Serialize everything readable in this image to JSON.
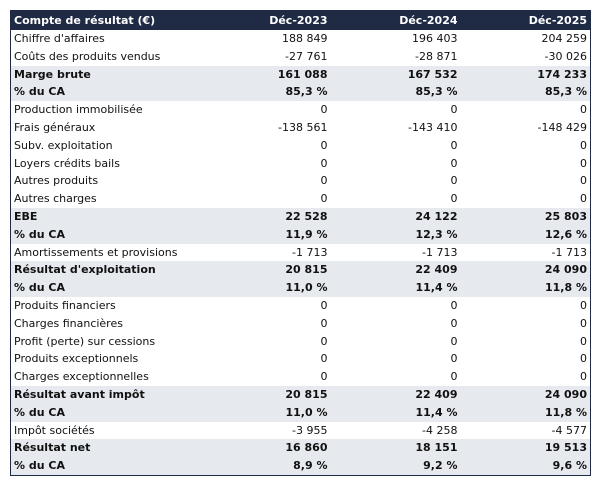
{
  "table": {
    "header": [
      "Compte de résultat (€)",
      "Déc-2023",
      "Déc-2024",
      "Déc-2025"
    ],
    "rows": [
      {
        "cells": [
          "Chiffre d'affaires",
          "188 849",
          "196 403",
          "204 259"
        ],
        "style": "normal"
      },
      {
        "cells": [
          "Coûts des produits vendus",
          "-27 761",
          "-28 871",
          "-30 026"
        ],
        "style": "normal"
      },
      {
        "cells": [
          "Marge brute",
          "161 088",
          "167 532",
          "174 233"
        ],
        "style": "total"
      },
      {
        "cells": [
          "% du CA",
          "85,3 %",
          "85,3 %",
          "85,3 %"
        ],
        "style": "total"
      },
      {
        "cells": [
          "Production immobilisée",
          "0",
          "0",
          "0"
        ],
        "style": "normal"
      },
      {
        "cells": [
          "Frais généraux",
          "-138 561",
          "-143 410",
          "-148 429"
        ],
        "style": "normal"
      },
      {
        "cells": [
          "Subv. exploitation",
          "0",
          "0",
          "0"
        ],
        "style": "normal"
      },
      {
        "cells": [
          "Loyers crédits bails",
          "0",
          "0",
          "0"
        ],
        "style": "normal"
      },
      {
        "cells": [
          "Autres produits",
          "0",
          "0",
          "0"
        ],
        "style": "normal"
      },
      {
        "cells": [
          "Autres charges",
          "0",
          "0",
          "0"
        ],
        "style": "normal"
      },
      {
        "cells": [
          "EBE",
          "22 528",
          "24 122",
          "25 803"
        ],
        "style": "total"
      },
      {
        "cells": [
          "% du CA",
          "11,9 %",
          "12,3 %",
          "12,6 %"
        ],
        "style": "total"
      },
      {
        "cells": [
          "Amortissements et provisions",
          "-1 713",
          "-1 713",
          "-1 713"
        ],
        "style": "normal"
      },
      {
        "cells": [
          "Résultat d'exploitation",
          "20 815",
          "22 409",
          "24 090"
        ],
        "style": "total"
      },
      {
        "cells": [
          "% du CA",
          "11,0 %",
          "11,4 %",
          "11,8 %"
        ],
        "style": "total"
      },
      {
        "cells": [
          "Produits financiers",
          "0",
          "0",
          "0"
        ],
        "style": "normal"
      },
      {
        "cells": [
          "Charges financières",
          "0",
          "0",
          "0"
        ],
        "style": "normal"
      },
      {
        "cells": [
          "Profit (perte) sur cessions",
          "0",
          "0",
          "0"
        ],
        "style": "normal"
      },
      {
        "cells": [
          "Produits exceptionnels",
          "0",
          "0",
          "0"
        ],
        "style": "normal"
      },
      {
        "cells": [
          "Charges exceptionnelles",
          "0",
          "0",
          "0"
        ],
        "style": "normal"
      },
      {
        "cells": [
          "Résultat avant impôt",
          "20 815",
          "22 409",
          "24 090"
        ],
        "style": "total"
      },
      {
        "cells": [
          "% du CA",
          "11,0 %",
          "11,4 %",
          "11,8 %"
        ],
        "style": "total"
      },
      {
        "cells": [
          "Impôt sociétés",
          "-3 955",
          "-4 258",
          "-4 577"
        ],
        "style": "normal"
      },
      {
        "cells": [
          "Résultat net",
          "16 860",
          "18 151",
          "19 513"
        ],
        "style": "total"
      },
      {
        "cells": [
          "% du CA",
          "8,9 %",
          "9,2 %",
          "9,6 %"
        ],
        "style": "total"
      }
    ]
  }
}
